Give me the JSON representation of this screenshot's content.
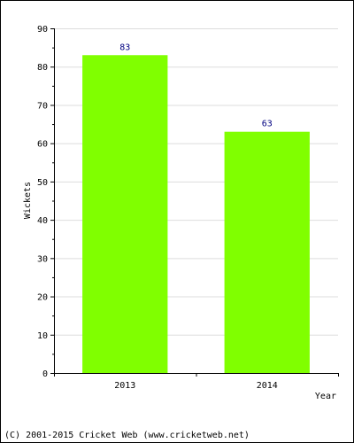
{
  "chart_data": {
    "type": "bar",
    "categories": [
      "2013",
      "2014"
    ],
    "values": [
      83,
      63
    ],
    "xlabel": "Year",
    "ylabel": "Wickets",
    "ylim": [
      0,
      90
    ],
    "yticks": [
      0,
      10,
      20,
      30,
      40,
      50,
      60,
      70,
      80,
      90
    ],
    "grid": true,
    "bar_color": "#80ff00",
    "value_label_color": "#000080",
    "grid_color": "#dddddd",
    "axis_color": "#000000"
  },
  "footer": {
    "credit": "(C) 2001-2015 Cricket Web (www.cricketweb.net)"
  }
}
